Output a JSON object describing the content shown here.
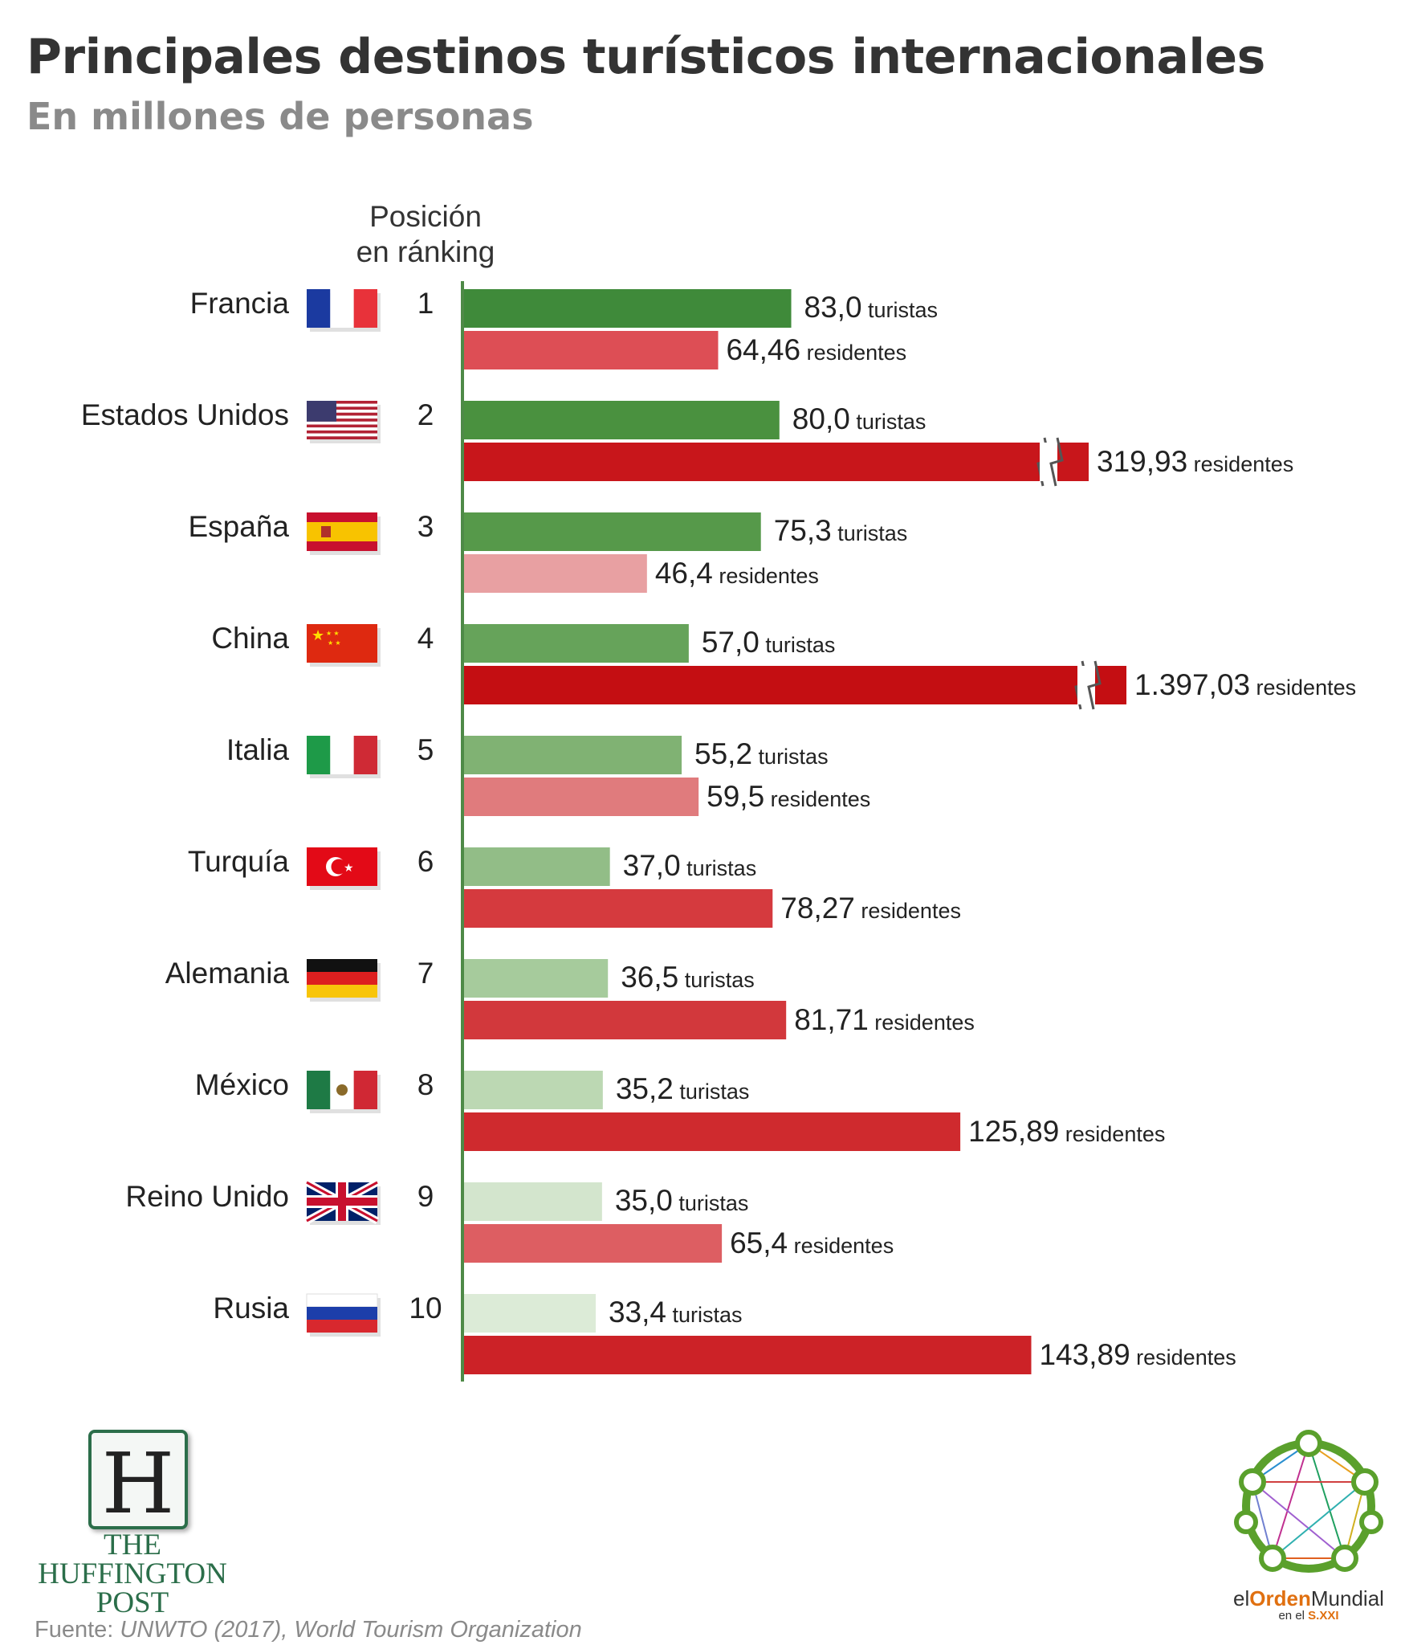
{
  "title": "Principales destinos turísticos internacionales",
  "subtitle": "En millones de personas",
  "rank_header_line1": "Posición",
  "rank_header_line2": "en ránking",
  "source_label": "Fuente:",
  "source_text": "UNWTO (2017), World Tourism Organization",
  "huffpost": {
    "letter": "H",
    "line1": "THE",
    "line2": "HUFFINGTON",
    "line3": "POST"
  },
  "eom": {
    "el": "el",
    "orden": "Orden",
    "mundial": "Mundial",
    "sub_pre": "en el",
    "sub_era": "S.XXI"
  },
  "colors": {
    "axis": "#4e8a47",
    "tourists_dark": "#3f8a3a",
    "residents_dark": "#c40e12"
  },
  "chart_data": {
    "type": "bar",
    "orientation": "horizontal",
    "tourist_unit": "turistas",
    "resident_unit": "residentes",
    "axis_break_on": [
      "Estados Unidos",
      "China"
    ],
    "rows": [
      {
        "country": "Francia",
        "flag": "france-flag",
        "rank": "1",
        "tourists": 83.0,
        "tourists_label": "83,0",
        "residents": 64.46,
        "residents_label": "64,46",
        "tourist_color": "#3f8a3a",
        "resident_color": "#dd4e55"
      },
      {
        "country": "Estados Unidos",
        "flag": "usa-flag",
        "rank": "2",
        "tourists": 80.0,
        "tourists_label": "80,0",
        "residents": 319.93,
        "residents_label": "319,93",
        "tourist_color": "#4a913f",
        "resident_color": "#c8161b"
      },
      {
        "country": "España",
        "flag": "spain-flag",
        "rank": "3",
        "tourists": 75.3,
        "tourists_label": "75,3",
        "residents": 46.4,
        "residents_label": "46,4",
        "tourist_color": "#56994a",
        "resident_color": "#e8a0a2"
      },
      {
        "country": "China",
        "flag": "china-flag",
        "rank": "4",
        "tourists": 57.0,
        "tourists_label": "57,0",
        "residents": 1397.03,
        "residents_label": "1.397,03",
        "tourist_color": "#66a35a",
        "resident_color": "#c40e12"
      },
      {
        "country": "Italia",
        "flag": "italy-flag",
        "rank": "5",
        "tourists": 55.2,
        "tourists_label": "55,2",
        "residents": 59.5,
        "residents_label": "59,5",
        "tourist_color": "#80b273",
        "resident_color": "#e07b7d"
      },
      {
        "country": "Turquía",
        "flag": "turkey-flag",
        "rank": "6",
        "tourists": 37.0,
        "tourists_label": "37,0",
        "residents": 78.27,
        "residents_label": "78,27",
        "tourist_color": "#92bd87",
        "resident_color": "#d53a3e"
      },
      {
        "country": "Alemania",
        "flag": "germany-flag",
        "rank": "7",
        "tourists": 36.5,
        "tourists_label": "36,5",
        "residents": 81.71,
        "residents_label": "81,71",
        "tourist_color": "#a6cb9c",
        "resident_color": "#d2383c"
      },
      {
        "country": "México",
        "flag": "mexico-flag",
        "rank": "8",
        "tourists": 35.2,
        "tourists_label": "35,2",
        "residents": 125.89,
        "residents_label": "125,89",
        "tourist_color": "#bcd8b3",
        "resident_color": "#cf2a2e"
      },
      {
        "country": "Reino Unido",
        "flag": "uk-flag",
        "rank": "9",
        "tourists": 35.0,
        "tourists_label": "35,0",
        "residents": 65.4,
        "residents_label": "65,4",
        "tourist_color": "#d3e5cd",
        "resident_color": "#dd5e62"
      },
      {
        "country": "Rusia",
        "flag": "russia-flag",
        "rank": "10",
        "tourists": 33.4,
        "tourists_label": "33,4",
        "residents": 143.89,
        "residents_label": "143,89",
        "tourist_color": "#dcebd7",
        "resident_color": "#cc2227"
      }
    ]
  }
}
